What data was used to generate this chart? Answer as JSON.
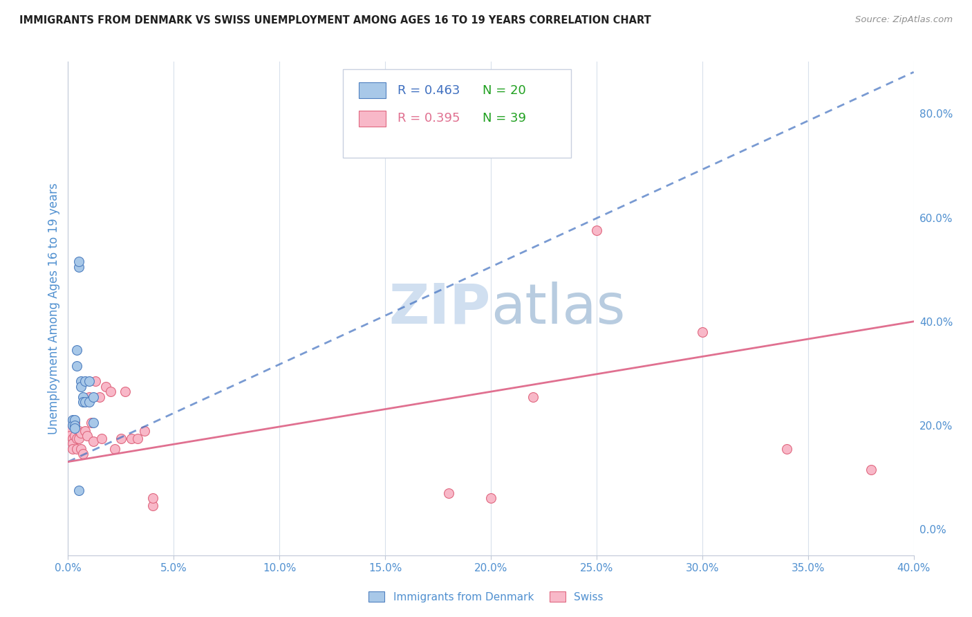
{
  "title": "IMMIGRANTS FROM DENMARK VS SWISS UNEMPLOYMENT AMONG AGES 16 TO 19 YEARS CORRELATION CHART",
  "source": "Source: ZipAtlas.com",
  "ylabel": "Unemployment Among Ages 16 to 19 years",
  "xlim": [
    0.0,
    0.4
  ],
  "ylim": [
    -0.05,
    0.9
  ],
  "xticks": [
    0.0,
    0.05,
    0.1,
    0.15,
    0.2,
    0.25,
    0.3,
    0.35,
    0.4
  ],
  "yticks": [
    0.0,
    0.2,
    0.4,
    0.6,
    0.8
  ],
  "blue_color": "#a8c8e8",
  "pink_color": "#f8b8c8",
  "blue_edge_color": "#5080c0",
  "pink_edge_color": "#e06880",
  "blue_line_color": "#4070c0",
  "pink_line_color": "#e07090",
  "title_color": "#202020",
  "axis_label_color": "#5090d0",
  "watermark_zip_color": "#d0dff0",
  "watermark_atlas_color": "#b8cce0",
  "legend_R_blue_color": "#4070c0",
  "legend_N_blue_color": "#20a020",
  "legend_R_pink_color": "#e07090",
  "legend_N_pink_color": "#20a020",
  "blue_x": [
    0.002,
    0.002,
    0.003,
    0.003,
    0.003,
    0.004,
    0.004,
    0.005,
    0.005,
    0.006,
    0.006,
    0.007,
    0.007,
    0.008,
    0.008,
    0.01,
    0.01,
    0.012,
    0.012,
    0.005
  ],
  "blue_y": [
    0.21,
    0.2,
    0.21,
    0.2,
    0.195,
    0.315,
    0.345,
    0.505,
    0.515,
    0.285,
    0.275,
    0.255,
    0.245,
    0.285,
    0.245,
    0.285,
    0.245,
    0.205,
    0.255,
    0.075
  ],
  "pink_x": [
    0.001,
    0.001,
    0.002,
    0.002,
    0.002,
    0.003,
    0.003,
    0.004,
    0.004,
    0.005,
    0.005,
    0.006,
    0.006,
    0.007,
    0.008,
    0.009,
    0.01,
    0.011,
    0.012,
    0.013,
    0.015,
    0.016,
    0.018,
    0.02,
    0.022,
    0.025,
    0.027,
    0.03,
    0.033,
    0.036,
    0.04,
    0.04,
    0.18,
    0.2,
    0.22,
    0.25,
    0.3,
    0.34,
    0.38
  ],
  "pink_y": [
    0.19,
    0.18,
    0.175,
    0.165,
    0.155,
    0.205,
    0.18,
    0.175,
    0.155,
    0.19,
    0.175,
    0.185,
    0.155,
    0.145,
    0.19,
    0.18,
    0.255,
    0.205,
    0.17,
    0.285,
    0.255,
    0.175,
    0.275,
    0.265,
    0.155,
    0.175,
    0.265,
    0.175,
    0.175,
    0.19,
    0.045,
    0.06,
    0.07,
    0.06,
    0.255,
    0.575,
    0.38,
    0.155,
    0.115
  ],
  "blue_trend_x": [
    0.0,
    0.4
  ],
  "blue_trend_y": [
    0.13,
    0.88
  ],
  "pink_trend_x": [
    0.0,
    0.4
  ],
  "pink_trend_y": [
    0.13,
    0.4
  ],
  "legend_R_blue": "R = 0.463",
  "legend_N_blue": "N = 20",
  "legend_R_pink": "R = 0.395",
  "legend_N_pink": "N = 39",
  "legend_label_blue": "Immigrants from Denmark",
  "legend_label_pink": "Swiss"
}
